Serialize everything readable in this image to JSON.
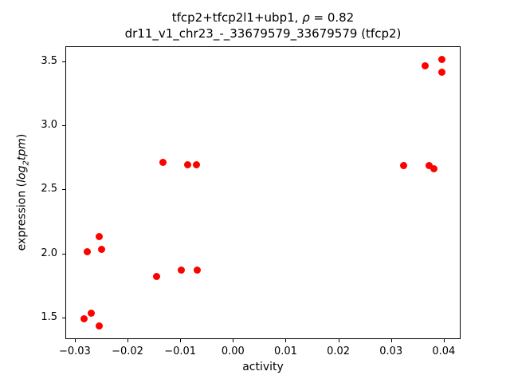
{
  "title": {
    "line1_prefix": "tfcp2+tfcp2l1+ubp1, ",
    "line1_rho": "ρ",
    "line1_eq": " = 0.82",
    "line2": "dr11_v1_chr23_-_33679579_33679579 (tfcp2)"
  },
  "axes": {
    "xlabel": "activity",
    "ylabel_prefix": "expression (",
    "ylabel_log": "log",
    "ylabel_sub": "2",
    "ylabel_var": "tpm",
    "ylabel_close": ")"
  },
  "chart_data": {
    "type": "scatter",
    "title": "tfcp2+tfcp2l1+ubp1, ρ = 0.82 — dr11_v1_chr23_-_33679579_33679579 (tfcp2)",
    "xlabel": "activity",
    "ylabel": "expression (log2 tpm)",
    "marker_color": "#ff0000",
    "marker_diameter_px": 9,
    "grid": false,
    "legend": null,
    "xlim": [
      -0.0318,
      0.0432
    ],
    "ylim": [
      1.334,
      3.616
    ],
    "xticks": {
      "values": [
        -0.03,
        -0.02,
        -0.01,
        0.0,
        0.01,
        0.02,
        0.03,
        0.04
      ],
      "labels": [
        "−0.03",
        "−0.02",
        "−0.01",
        "0.00",
        "0.01",
        "0.02",
        "0.03",
        "0.04"
      ]
    },
    "yticks": {
      "values": [
        1.5,
        2.0,
        2.5,
        3.0,
        3.5
      ],
      "labels": [
        "1.5",
        "2.0",
        "2.5",
        "3.0",
        "3.5"
      ]
    },
    "points": [
      [
        -0.0284,
        1.5
      ],
      [
        -0.0271,
        1.54
      ],
      [
        -0.0255,
        1.44
      ],
      [
        -0.0278,
        2.02
      ],
      [
        -0.0256,
        2.14
      ],
      [
        -0.0251,
        2.04
      ],
      [
        -0.0146,
        1.83
      ],
      [
        -0.01,
        1.88
      ],
      [
        -0.007,
        1.88
      ],
      [
        -0.0134,
        2.72
      ],
      [
        -0.0087,
        2.7
      ],
      [
        -0.0071,
        2.7
      ],
      [
        0.0322,
        2.69
      ],
      [
        0.0371,
        2.69
      ],
      [
        0.038,
        2.67
      ],
      [
        0.0363,
        3.47
      ],
      [
        0.0395,
        3.52
      ],
      [
        0.0395,
        3.42
      ]
    ]
  }
}
